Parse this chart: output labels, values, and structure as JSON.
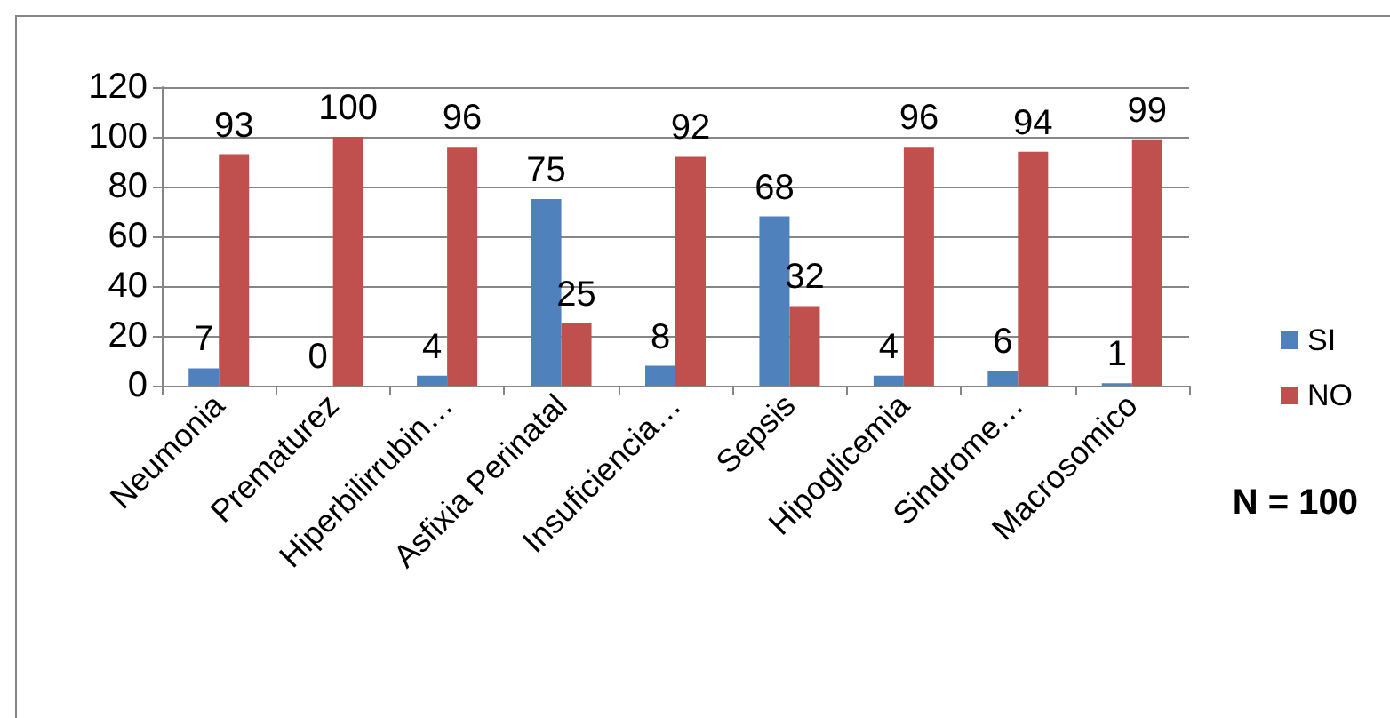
{
  "chart_data": {
    "type": "bar",
    "categories": [
      "Neumonia",
      "Prematurez",
      "Hiperbilirrubin…",
      "Asfixia Perinatal",
      "Insuficiencia…",
      "Sepsis",
      "Hipoglicemia",
      "Sindrome…",
      "Macrosomico"
    ],
    "series": [
      {
        "name": "SI",
        "color": "#4f81bd",
        "values": [
          7,
          0,
          4,
          75,
          8,
          68,
          4,
          6,
          1
        ]
      },
      {
        "name": "NO",
        "color": "#c0504d",
        "values": [
          93,
          100,
          96,
          25,
          92,
          32,
          96,
          94,
          99
        ]
      }
    ],
    "ylim": [
      0,
      120
    ],
    "yticks": [
      0,
      20,
      40,
      60,
      80,
      100,
      120
    ],
    "grid": "y",
    "legend": "right",
    "data_labels": true,
    "annotations": [
      "N = 100"
    ]
  }
}
